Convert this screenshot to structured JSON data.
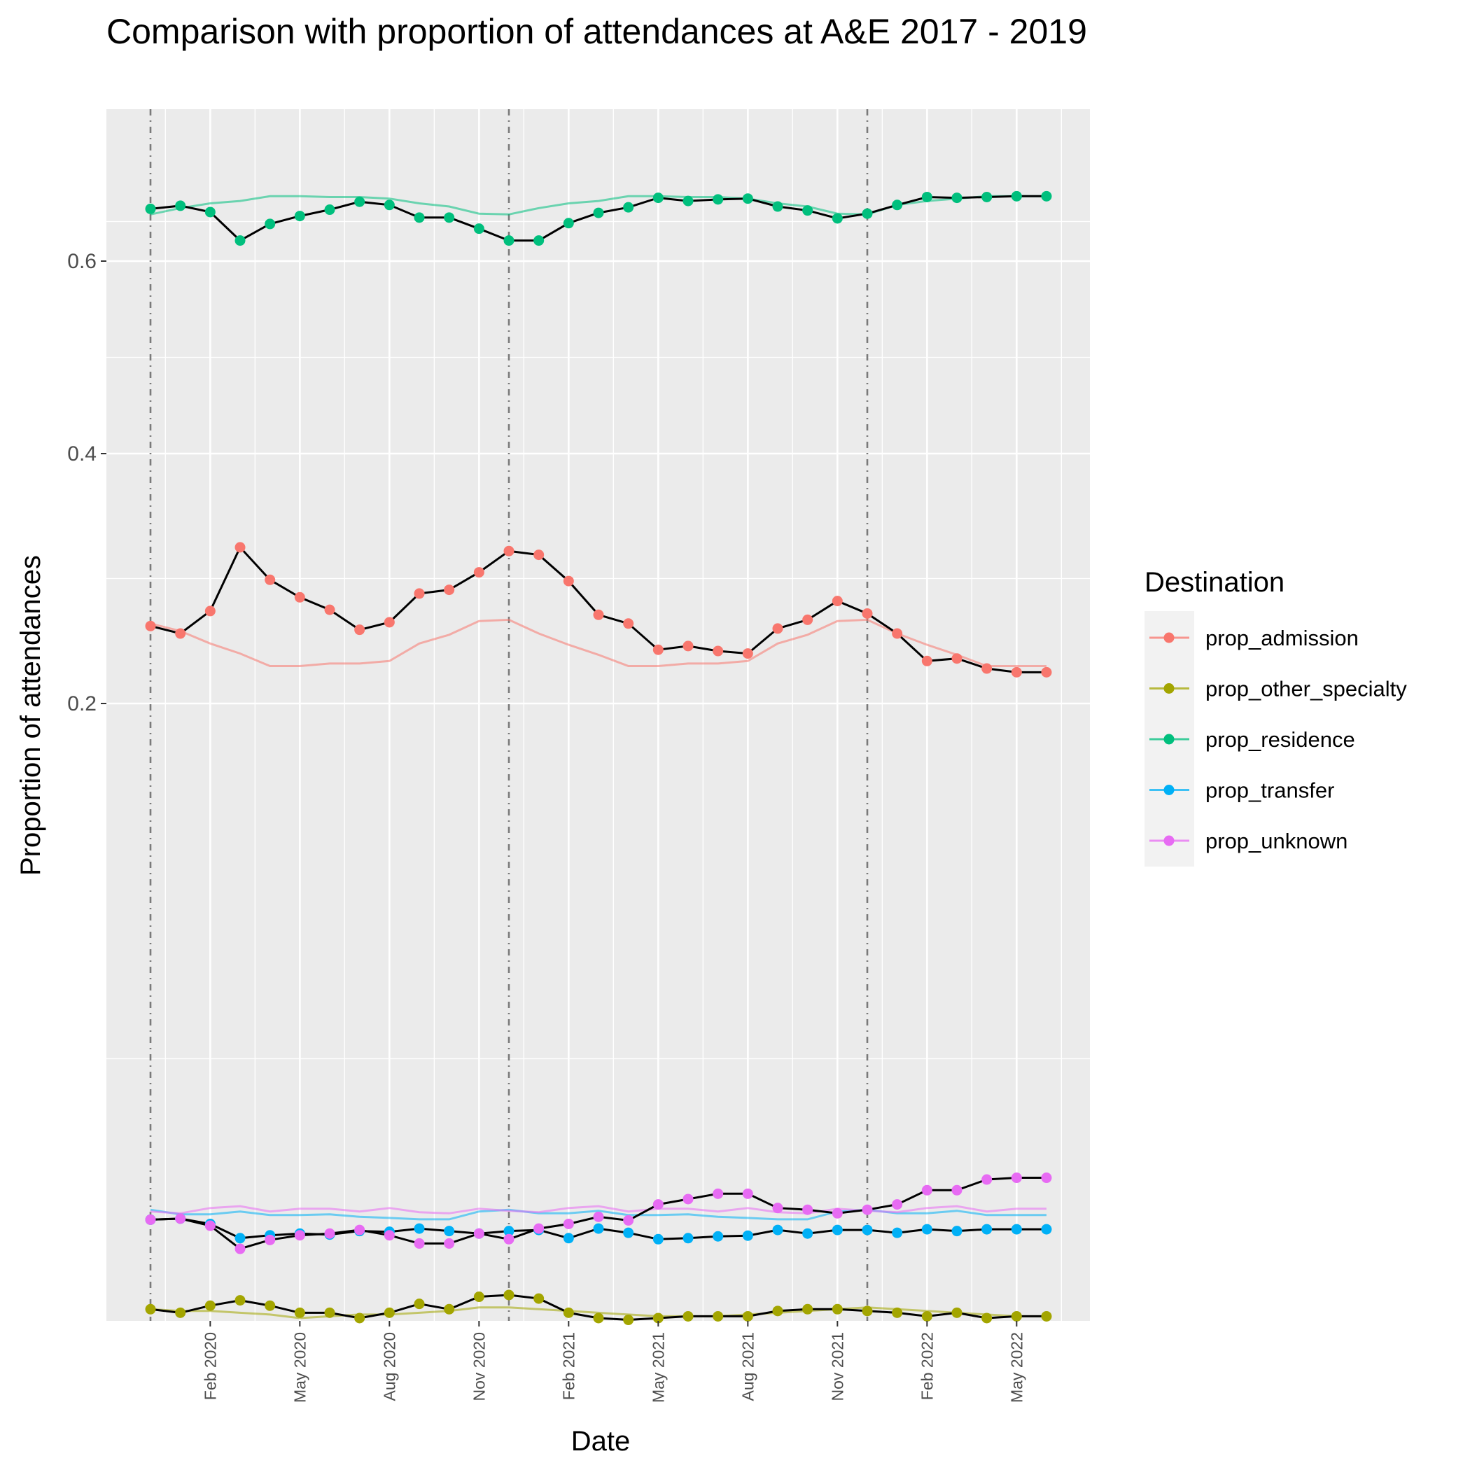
{
  "chart_data": {
    "type": "line",
    "title": "Comparison with proportion of attendances at A&E 2017 - 2019",
    "xlabel": "Date",
    "ylabel": "Proportion of attendances",
    "x_dates": [
      "2019-12",
      "2020-01",
      "2020-02",
      "2020-03",
      "2020-04",
      "2020-05",
      "2020-06",
      "2020-07",
      "2020-08",
      "2020-09",
      "2020-10",
      "2020-11",
      "2020-12",
      "2021-01",
      "2021-02",
      "2021-03",
      "2021-04",
      "2021-05",
      "2021-06",
      "2021-07",
      "2021-08",
      "2021-09",
      "2021-10",
      "2021-11",
      "2021-12",
      "2022-01",
      "2022-02",
      "2022-03",
      "2022-04",
      "2022-05",
      "2022-06"
    ],
    "x_tick_labels": [
      "Feb 2020",
      "May 2020",
      "Aug 2020",
      "Nov 2020",
      "Feb 2021",
      "May 2021",
      "Aug 2021",
      "Nov 2021",
      "Feb 2022",
      "May 2022"
    ],
    "x_tick_dates": [
      "2020-02",
      "2020-05",
      "2020-08",
      "2020-11",
      "2021-02",
      "2021-05",
      "2021-08",
      "2021-11",
      "2022-02",
      "2022-05"
    ],
    "y_tick_labels": [
      "0.2",
      "0.4",
      "0.6"
    ],
    "vertical_dashed_lines": [
      "2019-12",
      "2020-12",
      "2021-12"
    ],
    "grid": true,
    "legend": {
      "title": "Destination",
      "placement": "right",
      "items": [
        "prop_admission",
        "prop_other_specialty",
        "prop_residence",
        "prop_transfer",
        "prop_unknown"
      ]
    },
    "series": [
      {
        "name": "prop_admission",
        "color": "#F8766D",
        "values": [
          0.262,
          0.256,
          0.274,
          0.325,
          0.299,
          0.285,
          0.275,
          0.259,
          0.265,
          0.288,
          0.291,
          0.305,
          0.322,
          0.319,
          0.298,
          0.271,
          0.264,
          0.243,
          0.246,
          0.242,
          0.24,
          0.26,
          0.267,
          0.282,
          0.272,
          0.256,
          0.234,
          0.236,
          0.228,
          0.225,
          0.225
        ],
        "baseline": [
          0.264,
          0.258,
          0.248,
          0.24,
          0.23,
          0.23,
          0.232,
          0.232,
          0.234,
          0.248,
          0.255,
          0.266,
          0.267,
          0.256,
          0.247,
          0.239,
          0.23,
          0.23,
          0.232,
          0.232,
          0.234,
          0.248,
          0.255,
          0.266,
          0.267,
          0.256,
          0.247,
          0.239,
          0.23,
          0.23,
          0.23
        ]
      },
      {
        "name": "prop_other_specialty",
        "color": "#A3A500",
        "values": [
          0.0295,
          0.0285,
          0.0305,
          0.032,
          0.0305,
          0.0285,
          0.0285,
          0.027,
          0.0285,
          0.031,
          0.0295,
          0.033,
          0.0335,
          0.0325,
          0.0285,
          0.027,
          0.0265,
          0.027,
          0.0275,
          0.0275,
          0.0275,
          0.029,
          0.0295,
          0.0295,
          0.029,
          0.0285,
          0.0275,
          0.0285,
          0.027,
          0.0275,
          0.0275
        ],
        "baseline": [
          0.0295,
          0.029,
          0.029,
          0.0285,
          0.028,
          0.027,
          0.0275,
          0.028,
          0.028,
          0.0285,
          0.029,
          0.03,
          0.03,
          0.0295,
          0.029,
          0.0285,
          0.028,
          0.0275,
          0.0275,
          0.0275,
          0.028,
          0.0285,
          0.029,
          0.0295,
          0.03,
          0.0295,
          0.029,
          0.0285,
          0.028,
          0.0275,
          0.0275
        ]
      },
      {
        "name": "prop_residence",
        "color": "#00BF7D",
        "values": [
          0.666,
          0.67,
          0.662,
          0.626,
          0.647,
          0.657,
          0.665,
          0.675,
          0.671,
          0.655,
          0.655,
          0.641,
          0.626,
          0.626,
          0.648,
          0.661,
          0.668,
          0.68,
          0.676,
          0.678,
          0.679,
          0.669,
          0.664,
          0.654,
          0.66,
          0.671,
          0.681,
          0.68,
          0.681,
          0.682,
          0.682
        ],
        "baseline": [
          0.659,
          0.667,
          0.673,
          0.676,
          0.682,
          0.682,
          0.681,
          0.681,
          0.679,
          0.673,
          0.669,
          0.66,
          0.659,
          0.667,
          0.673,
          0.676,
          0.682,
          0.682,
          0.681,
          0.681,
          0.679,
          0.673,
          0.669,
          0.66,
          0.659,
          0.671,
          0.676,
          0.679,
          0.682,
          0.682,
          0.682
        ]
      },
      {
        "name": "prop_transfer",
        "color": "#00B0F6",
        "values": [
          0.0547,
          0.055,
          0.0535,
          0.0495,
          0.0503,
          0.0508,
          0.0505,
          0.0515,
          0.0513,
          0.0522,
          0.0515,
          0.0508,
          0.0515,
          0.0518,
          0.0495,
          0.0522,
          0.051,
          0.0492,
          0.0495,
          0.05,
          0.0502,
          0.0518,
          0.0508,
          0.0518,
          0.0518,
          0.051,
          0.052,
          0.0515,
          0.052,
          0.052,
          0.052
        ],
        "baseline": [
          0.0575,
          0.0562,
          0.0562,
          0.057,
          0.056,
          0.056,
          0.0562,
          0.0555,
          0.0552,
          0.0548,
          0.0548,
          0.057,
          0.0575,
          0.0565,
          0.0565,
          0.0572,
          0.056,
          0.056,
          0.0562,
          0.0555,
          0.0552,
          0.0548,
          0.0548,
          0.057,
          0.0575,
          0.0565,
          0.0565,
          0.0572,
          0.056,
          0.056,
          0.056
        ]
      },
      {
        "name": "prop_unknown",
        "color": "#E76BF3",
        "values": [
          0.0547,
          0.055,
          0.053,
          0.0465,
          0.049,
          0.0503,
          0.0508,
          0.0518,
          0.0503,
          0.048,
          0.048,
          0.0508,
          0.0492,
          0.0522,
          0.0535,
          0.0555,
          0.0545,
          0.059,
          0.0605,
          0.062,
          0.062,
          0.058,
          0.0575,
          0.0565,
          0.0575,
          0.059,
          0.063,
          0.063,
          0.066,
          0.0665,
          0.0665
        ],
        "baseline": [
          0.057,
          0.0565,
          0.058,
          0.0585,
          0.057,
          0.0578,
          0.0578,
          0.057,
          0.058,
          0.0568,
          0.0565,
          0.0578,
          0.0572,
          0.0568,
          0.058,
          0.0585,
          0.057,
          0.0578,
          0.0578,
          0.057,
          0.058,
          0.0568,
          0.0565,
          0.0578,
          0.0572,
          0.0568,
          0.058,
          0.0585,
          0.057,
          0.0578,
          0.0578
        ]
      }
    ]
  }
}
